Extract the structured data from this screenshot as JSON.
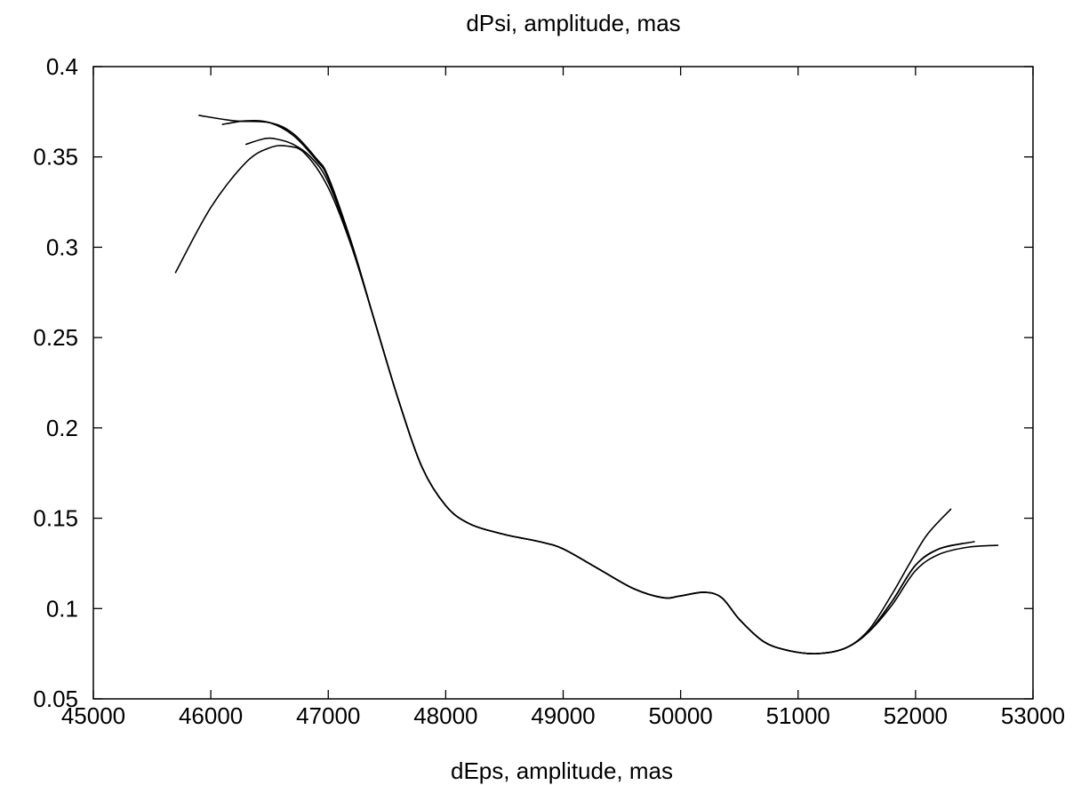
{
  "chart_data": {
    "type": "line",
    "title": "dPsi, amplitude, mas",
    "xlabel": "dEps, amplitude, mas",
    "ylabel": "",
    "xlim": [
      45000,
      53000
    ],
    "ylim": [
      0.05,
      0.4
    ],
    "xticks": [
      45000,
      46000,
      47000,
      48000,
      49000,
      50000,
      51000,
      52000,
      53000
    ],
    "xtick_labels": [
      "45000",
      "46000",
      "47000",
      "48000",
      "49000",
      "50000",
      "51000",
      "52000",
      "53000"
    ],
    "yticks": [
      0.05,
      0.1,
      0.15,
      0.2,
      0.25,
      0.3,
      0.35,
      0.4
    ],
    "ytick_labels": [
      "0.05",
      "0.1",
      "0.15",
      "0.2",
      "0.25",
      "0.3",
      "0.35",
      "0.4"
    ],
    "grid": false,
    "legend": "none",
    "series": [
      {
        "x": [
          45700,
          46000,
          46300,
          46500,
          46650,
          46800,
          47000,
          47200,
          47400,
          47600,
          47800,
          48000,
          48200,
          48500,
          48800,
          49000,
          49300,
          49600,
          49850,
          50000,
          50200,
          50350,
          50500,
          50700,
          50900,
          51150,
          51400,
          51600,
          51800,
          52000,
          52200,
          52450,
          52700
        ],
        "y": [
          0.286,
          0.322,
          0.347,
          0.355,
          0.356,
          0.352,
          0.333,
          0.3,
          0.258,
          0.215,
          0.178,
          0.157,
          0.147,
          0.141,
          0.137,
          0.133,
          0.122,
          0.111,
          0.106,
          0.107,
          0.109,
          0.106,
          0.094,
          0.082,
          0.077,
          0.075,
          0.078,
          0.087,
          0.102,
          0.121,
          0.13,
          0.134,
          0.135
        ]
      },
      {
        "x": [
          46300,
          46450,
          46550,
          46700,
          46850,
          47000,
          47200,
          47400,
          47600,
          47800,
          48000,
          48200,
          48500,
          48800,
          49000,
          49300,
          49600,
          49850,
          50000,
          50200,
          50350,
          50500,
          50700,
          50900,
          51150,
          51400,
          51600,
          51800,
          52000,
          52200,
          52500
        ],
        "y": [
          0.357,
          0.36,
          0.36,
          0.357,
          0.35,
          0.336,
          0.301,
          0.258,
          0.215,
          0.178,
          0.157,
          0.147,
          0.141,
          0.137,
          0.133,
          0.122,
          0.111,
          0.106,
          0.107,
          0.109,
          0.106,
          0.094,
          0.082,
          0.077,
          0.075,
          0.078,
          0.087,
          0.104,
          0.124,
          0.133,
          0.137
        ]
      },
      {
        "x": [
          46100,
          46300,
          46500,
          46700,
          46900,
          47000,
          47200,
          47400,
          47600,
          47800,
          48000,
          48200,
          48500,
          48800,
          49000,
          49300,
          49600,
          49850,
          50000,
          50200,
          50350,
          50500,
          50700,
          50900,
          51150,
          51400,
          51600,
          51800,
          52000,
          52200,
          52400
        ],
        "y": [
          0.368,
          0.37,
          0.369,
          0.362,
          0.348,
          0.338,
          0.302,
          0.258,
          0.215,
          0.178,
          0.157,
          0.147,
          0.141,
          0.137,
          0.133,
          0.122,
          0.111,
          0.106,
          0.107,
          0.109,
          0.106,
          0.094,
          0.082,
          0.077,
          0.075,
          0.078,
          0.087,
          0.104,
          0.124,
          0.133,
          0.136
        ]
      },
      {
        "x": [
          45900,
          46200,
          46500,
          46700,
          46900,
          47000,
          47200,
          47400,
          47600,
          47800,
          48000,
          48200,
          48500,
          48800,
          49000,
          49300,
          49600,
          49850,
          50000,
          50200,
          50350,
          50500,
          50700,
          50900,
          51150,
          51400,
          51600,
          51800,
          51950,
          52100,
          52300
        ],
        "y": [
          0.373,
          0.37,
          0.369,
          0.363,
          0.349,
          0.339,
          0.302,
          0.258,
          0.215,
          0.178,
          0.157,
          0.147,
          0.141,
          0.137,
          0.133,
          0.122,
          0.111,
          0.106,
          0.107,
          0.109,
          0.106,
          0.094,
          0.082,
          0.077,
          0.075,
          0.078,
          0.088,
          0.108,
          0.125,
          0.141,
          0.155
        ]
      }
    ]
  }
}
